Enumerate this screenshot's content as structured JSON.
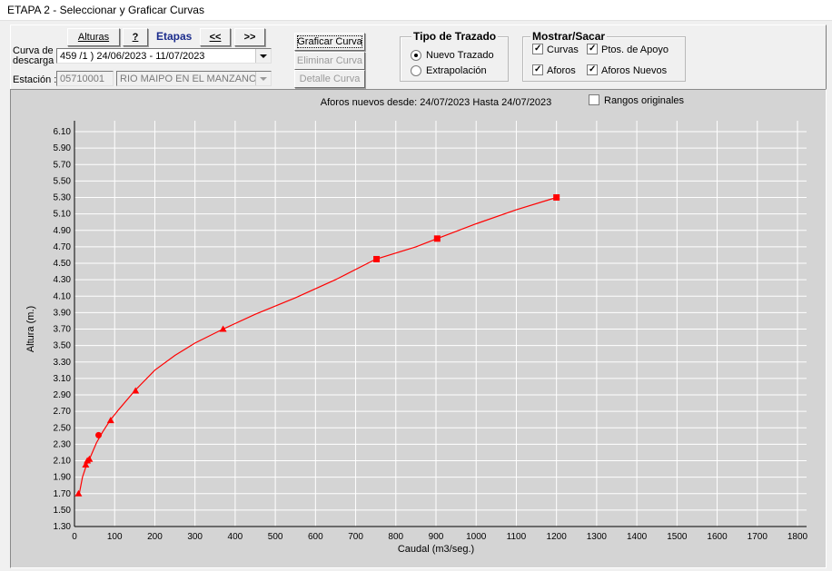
{
  "window": {
    "title": "ETAPA  2 - Seleccionar y Graficar Curvas"
  },
  "toolbar": {
    "alturas_label": "Alturas",
    "help_label": "?",
    "etapas_label": "Etapas",
    "prev_label": "<<",
    "next_label": ">>",
    "graficar_label": "Graficar Curva",
    "eliminar_label": "Eliminar Curva",
    "detalle_label": "Detalle Curva"
  },
  "form": {
    "curva_label_1": "Curva de",
    "curva_label_2": "descarga",
    "curva_value": "459 /1 ) 24/06/2023  - 11/07/2023",
    "estacion_label": "Estación :",
    "estacion_code": "05710001",
    "estacion_name": "RIO MAIPO EN EL MANZANO"
  },
  "tipo_trazado": {
    "title": "Tipo de Trazado",
    "options": [
      "Nuevo Trazado",
      "Extrapolación"
    ],
    "selected": "Nuevo Trazado"
  },
  "mostrar_sacar": {
    "title": "Mostrar/Sacar",
    "items": [
      {
        "label": "Curvas",
        "checked": true
      },
      {
        "label": "Ptos. de Apoyo",
        "checked": true
      },
      {
        "label": "Aforos",
        "checked": true
      },
      {
        "label": "Aforos Nuevos",
        "checked": true
      }
    ]
  },
  "rangos_originales": {
    "label": "Rangos originales",
    "checked": false
  },
  "colors": {
    "curve": "#ff0000",
    "grid": "#ffffff",
    "plot_bg": "#d4d4d4"
  },
  "chart_data": {
    "type": "line",
    "title": "Aforos nuevos desde: 24/07/2023 Hasta 24/07/2023",
    "xlabel": "Caudal (m3/seg.)",
    "ylabel": "Altura (m.)",
    "xlim": [
      0,
      1800
    ],
    "ylim": [
      1.3,
      6.1
    ],
    "xticks": [
      0,
      100,
      200,
      300,
      400,
      500,
      600,
      700,
      800,
      900,
      1000,
      1100,
      1200,
      1300,
      1400,
      1500,
      1600,
      1700,
      1800
    ],
    "yticks": [
      "1.30",
      "1.50",
      "1.70",
      "1.90",
      "2.10",
      "2.30",
      "2.50",
      "2.70",
      "2.90",
      "3.10",
      "3.30",
      "3.50",
      "3.70",
      "3.90",
      "4.10",
      "4.30",
      "4.50",
      "4.70",
      "4.90",
      "5.10",
      "5.30",
      "5.50",
      "5.70",
      "5.90",
      "6.10"
    ],
    "grid": true,
    "series": [
      {
        "kind": "curve",
        "x": [
          12,
          20,
          30,
          40,
          55,
          70,
          90,
          110,
          150,
          200,
          250,
          300,
          370,
          450,
          550,
          650,
          750,
          850,
          903,
          1000,
          1100,
          1200
        ],
        "y": [
          1.7,
          1.9,
          2.05,
          2.15,
          2.32,
          2.45,
          2.6,
          2.72,
          2.95,
          3.2,
          3.38,
          3.53,
          3.7,
          3.88,
          4.08,
          4.3,
          4.55,
          4.7,
          4.8,
          4.98,
          5.15,
          5.3
        ]
      },
      {
        "kind": "triangle",
        "x": [
          10,
          28,
          32,
          37,
          90,
          152,
          370
        ],
        "y": [
          1.7,
          2.05,
          2.1,
          2.12,
          2.59,
          2.95,
          3.7
        ]
      },
      {
        "kind": "circle",
        "x": [
          60
        ],
        "y": [
          2.41
        ]
      },
      {
        "kind": "square",
        "x": [
          752,
          903,
          1200
        ],
        "y": [
          4.55,
          4.8,
          5.3
        ]
      }
    ]
  }
}
